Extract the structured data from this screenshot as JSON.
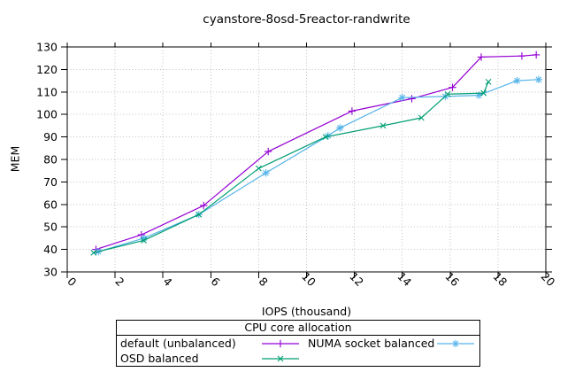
{
  "chart_data": {
    "type": "line",
    "title": "cyanstore-8osd-5reactor-randwrite",
    "xlabel": "IOPS (thousand)",
    "ylabel": "MEM",
    "xlim": [
      0,
      20
    ],
    "ylim": [
      30,
      130
    ],
    "xticks": [
      0,
      2,
      4,
      6,
      8,
      10,
      12,
      14,
      16,
      18,
      20
    ],
    "yticks": [
      30,
      40,
      50,
      60,
      70,
      80,
      90,
      100,
      110,
      120,
      130
    ],
    "grid": true,
    "grid_color": "#c0c0c0",
    "border_color": "#000000",
    "legend_title": "CPU core allocation",
    "legend_position": "below-plot, boxed, 2 columns",
    "series": [
      {
        "name": "default (unbalanced)",
        "color": "#9400d3",
        "marker": "plus",
        "points": [
          [
            1.2,
            40
          ],
          [
            3.1,
            46.5
          ],
          [
            5.7,
            59.5
          ],
          [
            8.4,
            83.5
          ],
          [
            11.9,
            101.5
          ],
          [
            14.4,
            107
          ],
          [
            16.1,
            112
          ],
          [
            17.3,
            125.5
          ],
          [
            19.0,
            126
          ],
          [
            19.6,
            126.5
          ]
        ]
      },
      {
        "name": "NUMA socket balanced",
        "color": "#56b4e9",
        "marker": "asterisk",
        "points": [
          [
            1.3,
            39
          ],
          [
            3.2,
            45
          ],
          [
            5.5,
            55.5
          ],
          [
            8.3,
            74
          ],
          [
            10.9,
            90.5
          ],
          [
            11.4,
            94
          ],
          [
            14.0,
            107.5
          ],
          [
            15.8,
            108
          ],
          [
            17.2,
            108.5
          ],
          [
            18.8,
            115
          ],
          [
            19.7,
            115.5
          ]
        ]
      },
      {
        "name": "OSD balanced",
        "color": "#009e73",
        "marker": "cross",
        "points": [
          [
            1.1,
            38.5
          ],
          [
            3.2,
            44
          ],
          [
            5.5,
            55.5
          ],
          [
            8.0,
            76
          ],
          [
            10.8,
            90
          ],
          [
            13.2,
            95
          ],
          [
            14.8,
            98.5
          ],
          [
            15.9,
            109
          ],
          [
            17.4,
            109.5
          ],
          [
            17.6,
            114.5
          ]
        ]
      }
    ]
  }
}
